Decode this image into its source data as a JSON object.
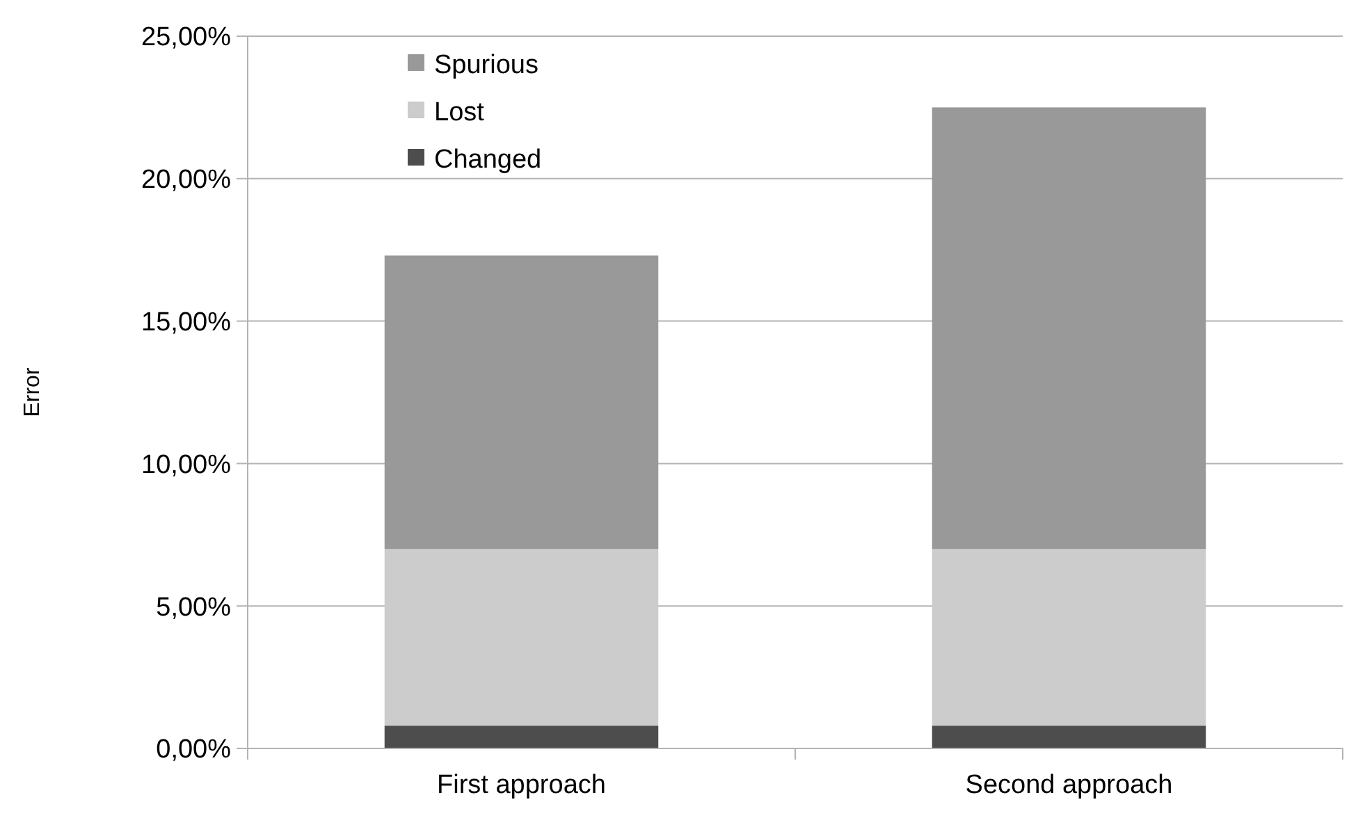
{
  "chart_data": {
    "type": "bar",
    "stacked": true,
    "ylabel": "Error",
    "categories": [
      "First approach",
      "Second approach"
    ],
    "series": [
      {
        "name": "Changed",
        "color": "#4d4d4d",
        "values": [
          0.8,
          0.8
        ]
      },
      {
        "name": "Lost",
        "color": "#cccccc",
        "values": [
          6.2,
          6.2
        ]
      },
      {
        "name": "Spurious",
        "color": "#999999",
        "values": [
          10.3,
          15.5
        ]
      }
    ],
    "ylim": [
      0,
      25
    ],
    "yticks": [
      {
        "value": 0,
        "label": "0,00%"
      },
      {
        "value": 5,
        "label": "5,00%"
      },
      {
        "value": 10,
        "label": "10,00%"
      },
      {
        "value": 15,
        "label": "15,00%"
      },
      {
        "value": 20,
        "label": "20,00%"
      },
      {
        "value": 25,
        "label": "25,00%"
      }
    ],
    "grid": "y",
    "legend": "top left"
  }
}
